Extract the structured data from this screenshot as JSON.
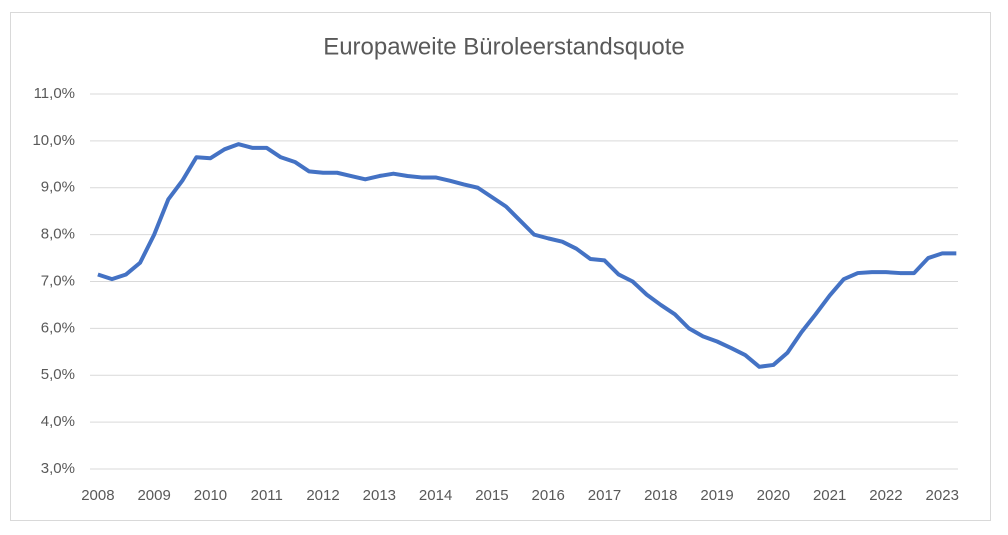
{
  "chart_data": {
    "type": "line",
    "title": "Europaweite Büroleerstandsquote",
    "x": [
      2008,
      2008.25,
      2008.5,
      2008.75,
      2009,
      2009.25,
      2009.5,
      2009.75,
      2010,
      2010.25,
      2010.5,
      2010.75,
      2011,
      2011.25,
      2011.5,
      2011.75,
      2012,
      2012.25,
      2012.5,
      2012.75,
      2013,
      2013.25,
      2013.5,
      2013.75,
      2014,
      2014.25,
      2014.5,
      2014.75,
      2015,
      2015.25,
      2015.5,
      2015.75,
      2016,
      2016.25,
      2016.5,
      2016.75,
      2017,
      2017.25,
      2017.5,
      2017.75,
      2018,
      2018.25,
      2018.5,
      2018.75,
      2019,
      2019.25,
      2019.5,
      2019.75,
      2020,
      2020.25,
      2020.5,
      2020.75,
      2021,
      2021.25,
      2021.5,
      2021.75,
      2022,
      2022.25,
      2022.5,
      2022.75,
      2023,
      2023.25
    ],
    "series": [
      {
        "color": "#4472c4",
        "values": [
          7.15,
          7.05,
          7.15,
          7.4,
          8.0,
          8.75,
          9.15,
          9.65,
          9.63,
          9.82,
          9.93,
          9.85,
          9.85,
          9.65,
          9.55,
          9.35,
          9.32,
          9.32,
          9.25,
          9.18,
          9.25,
          9.3,
          9.25,
          9.22,
          9.22,
          9.15,
          9.07,
          9.0,
          8.8,
          8.6,
          8.3,
          8.0,
          7.92,
          7.85,
          7.7,
          7.48,
          7.45,
          7.15,
          7.0,
          6.72,
          6.5,
          6.3,
          6.0,
          5.83,
          5.72,
          5.58,
          5.43,
          5.18,
          5.22,
          5.48,
          5.92,
          6.3,
          6.7,
          7.05,
          7.18,
          7.2,
          7.2,
          7.18,
          7.18,
          7.5,
          7.6,
          7.6
        ]
      }
    ],
    "xlim": [
      2007.86,
      2023.28
    ],
    "xticks": [
      2008,
      2009,
      2010,
      2011,
      2012,
      2013,
      2014,
      2015,
      2016,
      2017,
      2018,
      2019,
      2020,
      2021,
      2022,
      2023
    ],
    "ylim": [
      3,
      11
    ],
    "yticks": [
      {
        "value": 3,
        "label": "3,0%"
      },
      {
        "value": 4,
        "label": "4,0%"
      },
      {
        "value": 5,
        "label": "5,0%"
      },
      {
        "value": 6,
        "label": "6,0%"
      },
      {
        "value": 7,
        "label": "7,0%"
      },
      {
        "value": 8,
        "label": "8,0%"
      },
      {
        "value": 9,
        "label": "9,0%"
      },
      {
        "value": 10,
        "label": "10,0%"
      },
      {
        "value": 11,
        "label": "11,0%"
      }
    ],
    "grid": true
  }
}
